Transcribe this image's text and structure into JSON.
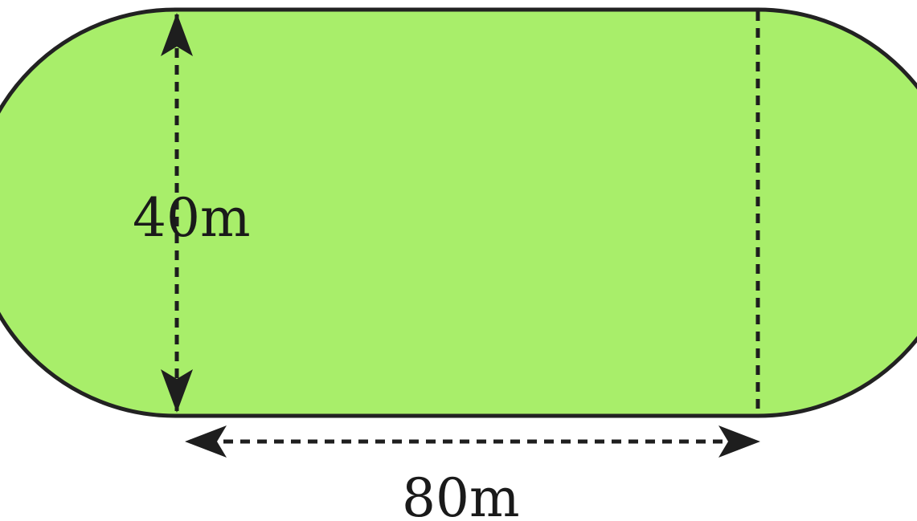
{
  "figure": {
    "shape": "stadium",
    "fill_color": "#a8ee6a",
    "outline_color": "#222222",
    "dimension_color": "#1e1e1e"
  },
  "dimensions": {
    "width_label": "40m",
    "length_label": "80m"
  }
}
